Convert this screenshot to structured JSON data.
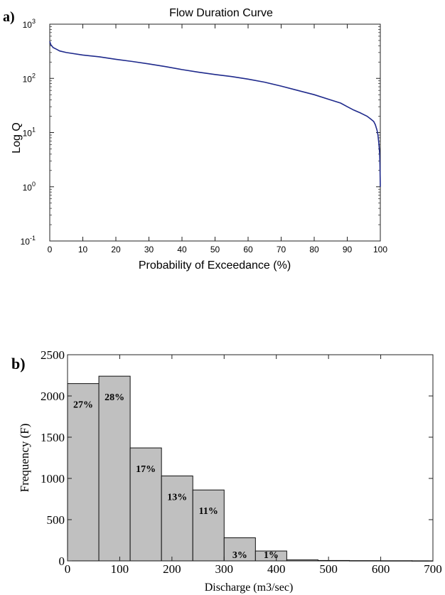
{
  "chart_data": [
    {
      "panel_label": "a)",
      "type": "line",
      "title": "Flow Duration Curve",
      "xlabel": "Probability of Exceedance (%)",
      "ylabel": "Log Q",
      "xlim": [
        0,
        100
      ],
      "ylim": [
        0.1,
        1000
      ],
      "yscale": "log",
      "x_ticks": [
        "0",
        "10",
        "20",
        "30",
        "40",
        "50",
        "60",
        "70",
        "80",
        "90",
        "100"
      ],
      "y_ticks": [
        {
          "base": "10",
          "exp": "-1",
          "value": 0.1
        },
        {
          "base": "10",
          "exp": "0",
          "value": 1
        },
        {
          "base": "10",
          "exp": "1",
          "value": 10
        },
        {
          "base": "10",
          "exp": "2",
          "value": 100
        },
        {
          "base": "10",
          "exp": "3",
          "value": 1000
        }
      ],
      "line_color": "#1f2a8c",
      "series": [
        {
          "x": [
            0,
            0.3,
            1,
            2,
            3,
            5,
            10,
            15,
            20,
            25,
            30,
            35,
            40,
            45,
            50,
            55,
            60,
            65,
            70,
            75,
            80,
            85,
            88,
            90,
            92,
            94,
            96,
            97,
            98,
            98.5,
            99,
            99.3,
            99.6,
            99.8,
            99.9,
            100
          ],
          "y": [
            480,
            420,
            370,
            345,
            320,
            300,
            270,
            250,
            225,
            205,
            185,
            165,
            145,
            130,
            118,
            108,
            97,
            85,
            72,
            60,
            50,
            40,
            35,
            30,
            26,
            23,
            20,
            18,
            16,
            14,
            11,
            9,
            6,
            4,
            2.5,
            1
          ]
        }
      ]
    },
    {
      "panel_label": "b)",
      "type": "bar",
      "xlabel": "Discharge (m3/sec)",
      "ylabel": "Frequency (F)",
      "xlim": [
        0,
        700
      ],
      "ylim": [
        0,
        2500
      ],
      "x_ticks": [
        "0",
        "100",
        "200",
        "300",
        "400",
        "500",
        "600",
        "700"
      ],
      "y_ticks": [
        "0",
        "500",
        "1000",
        "1500",
        "2000",
        "2500"
      ],
      "bar_color": "#c0c0c0",
      "bin_edges": [
        0,
        60,
        120,
        180,
        240,
        300,
        360,
        420,
        480,
        540,
        600,
        660,
        700
      ],
      "values": [
        2150,
        2240,
        1370,
        1030,
        860,
        280,
        120,
        12,
        5,
        3,
        2,
        1
      ],
      "bar_labels": [
        "27%",
        "28%",
        "17%",
        "13%",
        "11%",
        "3%",
        "1%",
        "",
        "",
        "",
        "",
        ""
      ]
    }
  ]
}
